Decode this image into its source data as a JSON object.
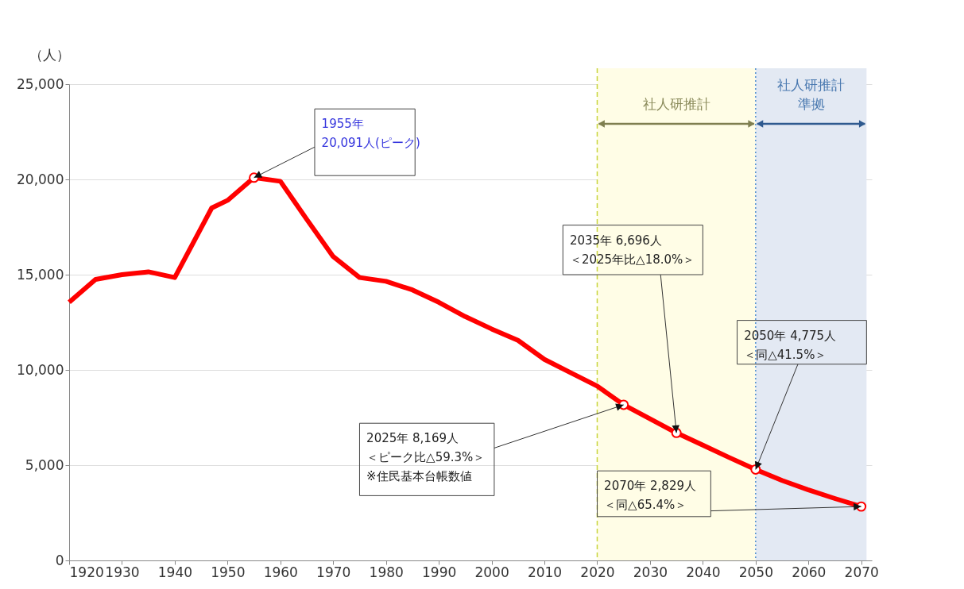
{
  "chart_data": {
    "type": "line",
    "ylabel": "（人）",
    "series": [
      {
        "color": "#ff0000",
        "x": [
          1920,
          1925,
          1930,
          1935,
          1940,
          1947,
          1950,
          1955,
          1960,
          1965,
          1970,
          1975,
          1980,
          1985,
          1990,
          1995,
          2000,
          2005,
          2010,
          2015,
          2020,
          2025,
          2030,
          2035,
          2040,
          2045,
          2050,
          2055,
          2060,
          2065,
          2070
        ],
        "values": [
          13550,
          14750,
          15000,
          15150,
          14850,
          18500,
          18900,
          20091,
          19900,
          17900,
          15950,
          14850,
          14650,
          14200,
          13550,
          12800,
          12150,
          11550,
          10550,
          9850,
          9150,
          8169,
          7430,
          6696,
          6050,
          5400,
          4775,
          4200,
          3700,
          3250,
          2829
        ]
      },
      {
        "type": "scatter",
        "color": "#ff0000",
        "marker": "circle",
        "x": [
          1955,
          2025,
          2035,
          2050,
          2070
        ],
        "values": [
          20091,
          8169,
          6696,
          4775,
          2829
        ]
      }
    ],
    "xlim": [
      1920,
      2072
    ],
    "xticks": [
      1920,
      1930,
      1940,
      1950,
      1960,
      1970,
      1980,
      1990,
      2000,
      2010,
      2020,
      2030,
      2040,
      2050,
      2060,
      2070
    ],
    "ylim": [
      0,
      25000
    ],
    "yticks": [
      {
        "value": 0,
        "label": "0"
      },
      {
        "value": 5000,
        "label": "5,000"
      },
      {
        "value": 10000,
        "label": "10,000"
      },
      {
        "value": 15000,
        "label": "15,000"
      },
      {
        "value": 20000,
        "label": "20,000"
      },
      {
        "value": 25000,
        "label": "25,000"
      }
    ],
    "grid": "y",
    "bands": [
      {
        "axis": "x",
        "from": 2020,
        "to": 2050,
        "label": "社人研推計",
        "color": "#fffde6"
      },
      {
        "axis": "x",
        "from": 2050,
        "to": 2071,
        "label": "社人研推計準拠",
        "color": "#e3e9f3"
      }
    ],
    "ref_lines": [
      {
        "axis": "x",
        "value": 2020,
        "color": "#c8d43c",
        "line_style": "dashed"
      },
      {
        "axis": "x",
        "value": 2050,
        "color": "#4f8fd0",
        "line_style": "dotted"
      }
    ],
    "annotations": [
      {
        "text": "1955年20,091人(ピーク)",
        "x": 1955,
        "y": 20091
      },
      {
        "text": "2025年 8,169人＜ピーク比△59.3%＞※住民基本台帳数値",
        "x": 2025,
        "y": 8169
      },
      {
        "text": "2035年 6,696人＜2025年比△18.0%＞",
        "x": 2035,
        "y": 6696
      },
      {
        "text": "2050年 4,775人＜同△41.5%＞",
        "x": 2050,
        "y": 4775
      },
      {
        "text": "2070年 2,829人＜同△65.4%＞",
        "x": 2070,
        "y": 2829
      }
    ]
  }
}
